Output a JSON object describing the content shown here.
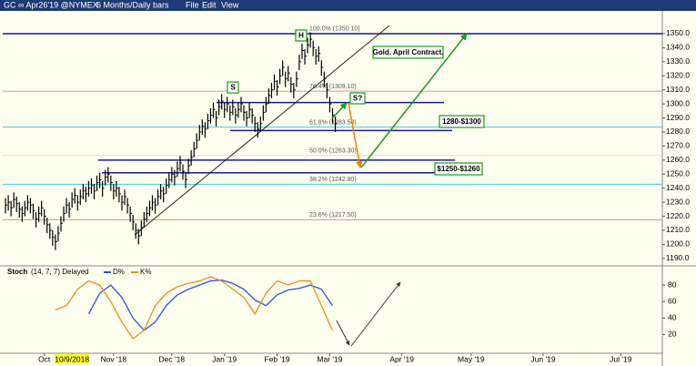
{
  "header": {
    "symbol": "GC ∞ Apr26'19 @NYMEX",
    "period": "6 Months/Daily bars",
    "menu": [
      "File",
      "Edit",
      "View"
    ]
  },
  "chart_data": [
    {
      "type": "ohlc",
      "color": "#000000",
      "high": [
        1233,
        1235,
        1231,
        1237,
        1234,
        1230,
        1227,
        1231,
        1235,
        1233,
        1229,
        1223,
        1227,
        1231,
        1225,
        1219,
        1215,
        1210,
        1207,
        1213,
        1220,
        1227,
        1233,
        1230,
        1237,
        1240,
        1235,
        1239,
        1243,
        1241,
        1245,
        1247,
        1243,
        1249,
        1251,
        1245,
        1253,
        1255,
        1249,
        1243,
        1245,
        1241,
        1235,
        1239,
        1233,
        1227,
        1221,
        1215,
        1211,
        1217,
        1223,
        1227,
        1231,
        1235,
        1233,
        1239,
        1243,
        1241,
        1247,
        1251,
        1255,
        1253,
        1259,
        1263,
        1257,
        1251,
        1261,
        1267,
        1273,
        1279,
        1285,
        1289,
        1287,
        1293,
        1297,
        1301,
        1295,
        1303,
        1307,
        1301,
        1305,
        1299,
        1303,
        1297,
        1301,
        1305,
        1299,
        1295,
        1301,
        1297,
        1291,
        1287,
        1291,
        1299,
        1305,
        1311,
        1315,
        1321,
        1317,
        1325,
        1331,
        1323,
        1327,
        1319,
        1315,
        1323,
        1335,
        1343,
        1339,
        1347,
        1351,
        1345,
        1339,
        1341,
        1331,
        1323,
        1315,
        1305,
        1297,
        1291
      ],
      "low": [
        1222,
        1224,
        1220,
        1226,
        1223,
        1219,
        1216,
        1220,
        1224,
        1222,
        1218,
        1212,
        1216,
        1220,
        1214,
        1208,
        1204,
        1199,
        1196,
        1202,
        1209,
        1216,
        1222,
        1219,
        1226,
        1229,
        1224,
        1228,
        1232,
        1230,
        1234,
        1236,
        1232,
        1238,
        1240,
        1234,
        1242,
        1244,
        1238,
        1232,
        1234,
        1230,
        1224,
        1228,
        1222,
        1216,
        1210,
        1204,
        1200,
        1206,
        1212,
        1216,
        1220,
        1224,
        1222,
        1228,
        1232,
        1230,
        1236,
        1240,
        1244,
        1242,
        1248,
        1252,
        1246,
        1240,
        1250,
        1256,
        1262,
        1268,
        1274,
        1278,
        1276,
        1282,
        1286,
        1290,
        1284,
        1292,
        1296,
        1290,
        1294,
        1288,
        1292,
        1286,
        1290,
        1294,
        1288,
        1284,
        1290,
        1286,
        1280,
        1276,
        1280,
        1288,
        1294,
        1300,
        1304,
        1310,
        1306,
        1314,
        1320,
        1312,
        1316,
        1308,
        1304,
        1312,
        1324,
        1332,
        1328,
        1336,
        1340,
        1334,
        1328,
        1330,
        1320,
        1312,
        1304,
        1294,
        1286,
        1280
      ],
      "close": [
        1228,
        1230,
        1226,
        1232,
        1229,
        1225,
        1222,
        1226,
        1230,
        1228,
        1224,
        1218,
        1222,
        1226,
        1220,
        1214,
        1210,
        1205,
        1202,
        1208,
        1215,
        1222,
        1228,
        1225,
        1232,
        1235,
        1230,
        1234,
        1238,
        1236,
        1240,
        1242,
        1238,
        1244,
        1246,
        1240,
        1248,
        1250,
        1244,
        1238,
        1240,
        1236,
        1230,
        1234,
        1228,
        1222,
        1216,
        1210,
        1206,
        1212,
        1218,
        1222,
        1226,
        1230,
        1228,
        1234,
        1238,
        1236,
        1242,
        1246,
        1250,
        1248,
        1254,
        1258,
        1252,
        1246,
        1256,
        1262,
        1268,
        1274,
        1280,
        1284,
        1282,
        1288,
        1292,
        1296,
        1290,
        1298,
        1302,
        1296,
        1300,
        1294,
        1298,
        1292,
        1296,
        1300,
        1294,
        1290,
        1296,
        1292,
        1286,
        1282,
        1286,
        1294,
        1300,
        1306,
        1310,
        1316,
        1312,
        1320,
        1326,
        1318,
        1322,
        1314,
        1310,
        1318,
        1330,
        1338,
        1334,
        1342,
        1346,
        1340,
        1334,
        1336,
        1326,
        1318,
        1310,
        1300,
        1292,
        1286
      ],
      "xlim": [
        -1,
        237
      ],
      "xticks": [
        {
          "value": 14,
          "label": "Oct"
        },
        {
          "value": 24,
          "label": "10/9/2018",
          "highlight": "#ffff33"
        },
        {
          "value": 39,
          "label": "Nov '18"
        },
        {
          "value": 60,
          "label": "Dec '18"
        },
        {
          "value": 79,
          "label": "Jan '19"
        },
        {
          "value": 98,
          "label": "Feb '19"
        },
        {
          "value": 117,
          "label": "Mar '19"
        },
        {
          "value": 143,
          "label": "Apr '19"
        },
        {
          "value": 168,
          "label": "May '19"
        },
        {
          "value": 194,
          "label": "Jun '19"
        },
        {
          "value": 222,
          "label": "Jul '19"
        }
      ],
      "ylim": [
        1186,
        1361
      ],
      "yticks": [
        {
          "value": 1190,
          "label": "1190.0"
        },
        {
          "value": 1200,
          "label": "1200.0"
        },
        {
          "value": 1210,
          "label": "1210.0"
        },
        {
          "value": 1220,
          "label": "1220.0"
        },
        {
          "value": 1230,
          "label": "1230.0"
        },
        {
          "value": 1240,
          "label": "1240.0"
        },
        {
          "value": 1250,
          "label": "1250.0"
        },
        {
          "value": 1260,
          "label": "1260.0"
        },
        {
          "value": 1270,
          "label": "1270.0"
        },
        {
          "value": 1280,
          "label": "1280.0"
        },
        {
          "value": 1290,
          "label": "1290.0"
        },
        {
          "value": 1300,
          "label": "1300.0"
        },
        {
          "value": 1310,
          "label": "1310.0"
        },
        {
          "value": 1320,
          "label": "1320.0"
        },
        {
          "value": 1330,
          "label": "1330.0"
        },
        {
          "value": 1340,
          "label": "1340.0"
        },
        {
          "value": 1350,
          "label": "1350.0"
        }
      ],
      "fib": [
        {
          "label": "100.0% (1350.10)",
          "value": 1350.1,
          "color": "#e09090"
        },
        {
          "label": "76.4% (1309.10)",
          "value": 1309.1,
          "color": "#e09090"
        },
        {
          "label": "61.8% (1283.50)",
          "value": 1283.5,
          "color": "#40c8e0"
        },
        {
          "label": "50.0% (1263.30)",
          "value": 1263.3,
          "color": "#f0d8c8"
        },
        {
          "label": "38.2% (1242.80)",
          "value": 1242.8,
          "color": "#40c8e0"
        },
        {
          "label": "23.6% (1217.50)",
          "value": 1217.5,
          "color": "#e09090"
        }
      ],
      "levels": [
        {
          "value": 1350,
          "color": "#1a1a9a"
        },
        {
          "value": 1301,
          "color": "#1a1a9a"
        },
        {
          "value": 1281,
          "color": "#1a1a9a"
        },
        {
          "value": 1260,
          "color": "#1a1a9a"
        },
        {
          "value": 1251,
          "color": "#1a1a9a"
        }
      ],
      "annotations": [
        "S",
        "H",
        "S?",
        "Gold. April Contract.",
        "1280-$1300",
        "$1250-$1260"
      ]
    },
    {
      "type": "line",
      "title": "Stoch",
      "subtitle": "(14, 7, 7) Delayed",
      "x": [
        18,
        22,
        26,
        30,
        34,
        38,
        42,
        46,
        50,
        54,
        58,
        62,
        66,
        70,
        74,
        78,
        82,
        86,
        90,
        94,
        98,
        102,
        106,
        110,
        114,
        118
      ],
      "series": [
        {
          "name": "D%",
          "color": "#2255dd",
          "values": [
            null,
            null,
            null,
            45,
            70,
            80,
            65,
            40,
            25,
            35,
            55,
            68,
            75,
            80,
            85,
            86,
            82,
            75,
            62,
            55,
            68,
            74,
            76,
            80,
            75,
            55
          ]
        },
        {
          "name": "K%",
          "color": "#f08a1c",
          "values": [
            50,
            55,
            75,
            85,
            80,
            60,
            35,
            15,
            25,
            55,
            70,
            78,
            82,
            85,
            90,
            85,
            75,
            65,
            45,
            70,
            85,
            80,
            85,
            85,
            55,
            25
          ]
        }
      ],
      "ylim": [
        -5,
        100
      ],
      "yticks": [
        20,
        40,
        60,
        80
      ]
    }
  ]
}
